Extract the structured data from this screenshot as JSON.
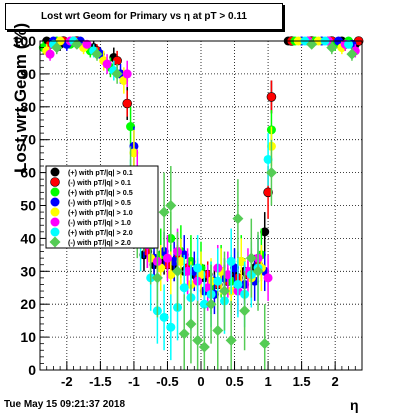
{
  "title": "Lost wrt Geom for Primary vs   η at pT > 0.11",
  "footer": "Tue May 15 09:21:37 2018",
  "chart_data": {
    "type": "scatter",
    "xlabel": "η",
    "ylabel": "Lost wrt Geom (%)",
    "xlim": [
      -2.4,
      2.4
    ],
    "ylim": [
      0,
      100
    ],
    "xticks": [
      -2,
      -1.5,
      -1,
      -0.5,
      0,
      0.5,
      1,
      1.5,
      2
    ],
    "yticks": [
      0,
      10,
      20,
      30,
      40,
      50,
      60,
      70,
      80,
      90,
      100
    ],
    "grid": true,
    "legend_position": "left-middle",
    "series": [
      {
        "name": "(+) with pT/|q| > 0.1",
        "color": "#000000",
        "x": [
          -2.3,
          -2.1,
          -1.9,
          -1.6,
          -1.3,
          -1.1,
          -0.95,
          -0.85,
          -0.7,
          -0.55,
          -0.4,
          -0.25,
          -0.1,
          0.05,
          0.2,
          0.35,
          0.5,
          0.65,
          0.8,
          0.95,
          1.05,
          1.3,
          1.6,
          1.9,
          2.1,
          2.3
        ],
        "y": [
          100,
          99,
          100,
          98,
          95,
          81,
          48,
          35,
          32,
          33,
          31,
          30,
          29,
          28,
          27,
          28,
          29,
          30,
          31,
          42,
          83,
          100,
          100,
          100,
          100,
          99
        ],
        "err": [
          1,
          2,
          1,
          2,
          3,
          5,
          7,
          5,
          4,
          4,
          4,
          4,
          4,
          4,
          4,
          4,
          4,
          4,
          4,
          6,
          5,
          1,
          1,
          1,
          1,
          2
        ]
      },
      {
        "name": "(-) with pT/|q| > 0.1",
        "color": "#ff0000",
        "x": [
          -2.25,
          -2.05,
          -1.85,
          -1.55,
          -1.25,
          -1.1,
          -0.9,
          -0.8,
          -0.65,
          -0.5,
          -0.35,
          -0.2,
          -0.05,
          0.1,
          0.25,
          0.4,
          0.55,
          0.7,
          0.85,
          1.0,
          1.05,
          1.35,
          1.65,
          1.95,
          2.15,
          2.35
        ],
        "y": [
          99,
          100,
          100,
          97,
          94,
          81,
          44,
          36,
          33,
          32,
          34,
          31,
          28,
          29,
          26,
          27,
          28,
          29,
          32,
          54,
          83,
          100,
          100,
          100,
          99,
          100
        ],
        "err": [
          2,
          1,
          1,
          2,
          3,
          4,
          6,
          5,
          4,
          4,
          4,
          4,
          4,
          4,
          4,
          4,
          4,
          4,
          4,
          8,
          5,
          1,
          1,
          1,
          2,
          1
        ]
      },
      {
        "name": "(+) with pT/|q| > 0.5",
        "color": "#00ff00",
        "x": [
          -2.35,
          -2.15,
          -1.95,
          -1.65,
          -1.35,
          -1.05,
          -0.95,
          -0.75,
          -0.6,
          -0.45,
          -0.3,
          -0.15,
          0.0,
          0.15,
          0.3,
          0.45,
          0.6,
          0.75,
          0.9,
          1.05,
          1.4,
          1.7,
          2.0,
          2.2
        ],
        "y": [
          98,
          100,
          99,
          97,
          92,
          74,
          49,
          38,
          35,
          40,
          36,
          33,
          31,
          25,
          30,
          27,
          33,
          29,
          35,
          73,
          100,
          100,
          99,
          100
        ],
        "err": [
          2,
          1,
          1,
          2,
          3,
          6,
          8,
          8,
          8,
          8,
          8,
          8,
          8,
          8,
          8,
          8,
          8,
          8,
          8,
          6,
          1,
          1,
          2,
          1
        ]
      },
      {
        "name": "(-) with pT/|q| > 0.5",
        "color": "#0000ff",
        "x": [
          -2.2,
          -2.0,
          -1.8,
          -1.5,
          -1.2,
          -1.0,
          -0.85,
          -0.7,
          -0.55,
          -0.4,
          -0.25,
          -0.1,
          0.05,
          0.2,
          0.35,
          0.5,
          0.65,
          0.8,
          0.95,
          1.5,
          1.8,
          2.05,
          2.25
        ],
        "y": [
          100,
          99,
          100,
          96,
          90,
          68,
          40,
          34,
          36,
          33,
          35,
          30,
          24,
          23,
          28,
          31,
          26,
          27,
          30,
          100,
          100,
          100,
          99
        ],
        "err": [
          1,
          2,
          1,
          2,
          3,
          6,
          6,
          6,
          6,
          6,
          6,
          6,
          6,
          6,
          6,
          6,
          6,
          6,
          6,
          1,
          1,
          1,
          2
        ]
      },
      {
        "name": "(+) with pT/|q| > 1.0",
        "color": "#ffff00",
        "x": [
          -2.3,
          -2.1,
          -1.75,
          -1.45,
          -1.15,
          -1.0,
          -0.9,
          -0.75,
          -0.6,
          -0.45,
          -0.3,
          -0.15,
          0.0,
          0.15,
          0.3,
          0.45,
          0.6,
          0.75,
          0.9,
          1.05,
          1.45,
          1.75,
          2.1
        ],
        "y": [
          97,
          100,
          98,
          94,
          88,
          66,
          47,
          34,
          31,
          29,
          33,
          26,
          29,
          27,
          30,
          24,
          33,
          28,
          31,
          68,
          100,
          100,
          98
        ],
        "err": [
          2,
          1,
          2,
          3,
          4,
          7,
          8,
          7,
          7,
          7,
          7,
          7,
          7,
          7,
          7,
          7,
          7,
          7,
          7,
          6,
          1,
          1,
          2
        ]
      },
      {
        "name": "(-) with pT/|q| > 1.0",
        "color": "#ff00ff",
        "x": [
          -2.25,
          -1.95,
          -1.7,
          -1.4,
          -1.1,
          -0.95,
          -0.8,
          -0.65,
          -0.5,
          -0.35,
          -0.2,
          -0.05,
          0.1,
          0.25,
          0.4,
          0.55,
          0.7,
          0.85,
          1.0,
          1.6,
          1.9,
          2.15,
          2.3
        ],
        "y": [
          96,
          100,
          99,
          93,
          90,
          60,
          38,
          33,
          34,
          36,
          30,
          27,
          25,
          31,
          29,
          24,
          30,
          34,
          28,
          100,
          100,
          99,
          97
        ],
        "err": [
          2,
          1,
          1,
          3,
          4,
          7,
          7,
          7,
          7,
          7,
          7,
          7,
          7,
          7,
          7,
          7,
          7,
          7,
          7,
          1,
          1,
          2,
          2
        ]
      },
      {
        "name": "(+) with pT/|q| > 2.0",
        "color": "#00ffff",
        "x": [
          -2.2,
          -1.9,
          -1.6,
          -1.3,
          -1.05,
          -0.9,
          -0.75,
          -0.65,
          -0.55,
          -0.45,
          -0.35,
          -0.25,
          -0.15,
          -0.05,
          0.05,
          0.15,
          0.25,
          0.35,
          0.45,
          0.55,
          0.65,
          0.75,
          0.85,
          1.0,
          1.55,
          1.85,
          2.2
        ],
        "y": [
          99,
          100,
          97,
          91,
          56,
          40,
          28,
          18,
          16,
          13,
          19,
          25,
          22,
          31,
          20,
          23,
          27,
          21,
          33,
          26,
          23,
          29,
          31,
          64,
          100,
          100,
          99
        ],
        "err": [
          1,
          1,
          2,
          3,
          8,
          10,
          10,
          10,
          10,
          10,
          10,
          10,
          10,
          10,
          10,
          10,
          10,
          10,
          10,
          10,
          10,
          10,
          10,
          8,
          1,
          1,
          1
        ]
      },
      {
        "name": "(-) with pT/|q| > 2.0",
        "color": "#55cc55",
        "x": [
          -2.15,
          -1.85,
          -1.55,
          -1.25,
          -1.05,
          -0.95,
          -0.85,
          -0.75,
          -0.65,
          -0.55,
          -0.45,
          -0.35,
          -0.25,
          -0.15,
          -0.05,
          0.05,
          0.15,
          0.25,
          0.35,
          0.45,
          0.55,
          0.65,
          0.75,
          0.85,
          0.95,
          1.05,
          1.65,
          1.95,
          2.25
        ],
        "y": [
          98,
          99,
          96,
          90,
          58,
          46,
          48,
          38,
          28,
          48,
          50,
          30,
          11,
          14,
          9,
          7,
          20,
          12,
          24,
          9,
          46,
          18,
          34,
          30,
          8,
          60,
          99,
          98,
          96
        ],
        "err": [
          2,
          1,
          2,
          3,
          10,
          12,
          12,
          12,
          12,
          12,
          12,
          12,
          12,
          12,
          12,
          12,
          12,
          12,
          12,
          12,
          12,
          12,
          12,
          12,
          12,
          10,
          1,
          2,
          2
        ]
      }
    ]
  }
}
